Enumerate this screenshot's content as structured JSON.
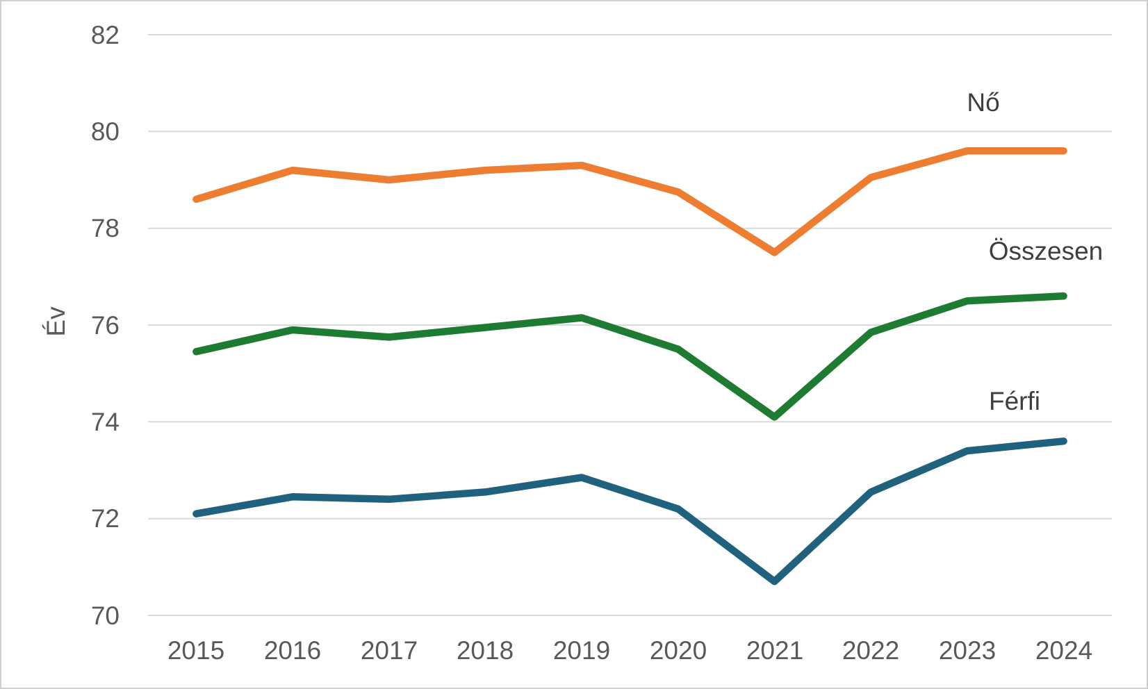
{
  "chart_data": {
    "type": "line",
    "title": "",
    "xlabel": "",
    "ylabel": "Év",
    "categories": [
      "2015",
      "2016",
      "2017",
      "2018",
      "2019",
      "2020",
      "2021",
      "2022",
      "2023",
      "2024"
    ],
    "yticks": [
      82,
      80,
      78,
      76,
      74,
      72,
      70
    ],
    "ylim": [
      70,
      82
    ],
    "grid": true,
    "legend_position": "direct-labels-right-inline",
    "grid_color": "#D9D9D9",
    "tick_text_color": "#595959",
    "label_text_color": "#3F3F3F",
    "background_color": "#FFFFFF",
    "series": [
      {
        "name": "Nő",
        "color": "#ED7D31",
        "values": [
          78.6,
          79.2,
          79.0,
          79.2,
          79.3,
          78.75,
          77.5,
          79.05,
          79.6,
          79.6
        ]
      },
      {
        "name": "Összesen",
        "color": "#1E7B32",
        "values": [
          75.45,
          75.9,
          75.75,
          75.95,
          76.15,
          75.5,
          74.1,
          75.85,
          76.5,
          76.6
        ]
      },
      {
        "name": "Férfi",
        "color": "#20617E",
        "values": [
          72.1,
          72.45,
          72.4,
          72.55,
          72.85,
          72.2,
          70.7,
          72.55,
          73.4,
          73.6
        ]
      }
    ]
  }
}
